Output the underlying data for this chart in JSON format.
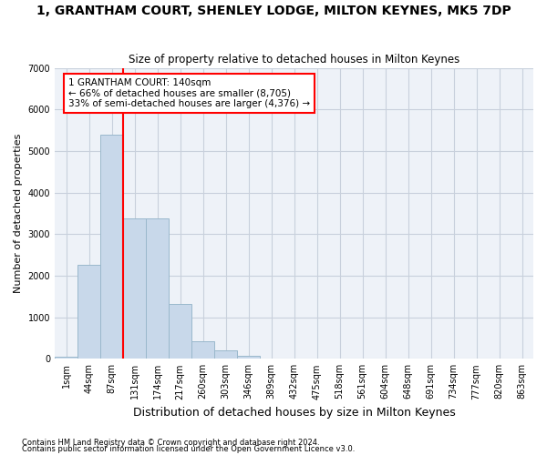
{
  "title": "1, GRANTHAM COURT, SHENLEY LODGE, MILTON KEYNES, MK5 7DP",
  "subtitle": "Size of property relative to detached houses in Milton Keynes",
  "xlabel": "Distribution of detached houses by size in Milton Keynes",
  "ylabel": "Number of detached properties",
  "bar_color": "#c8d8ea",
  "bar_edge_color": "#9ab8cc",
  "grid_color": "#c8d0dc",
  "background_color": "#eef2f8",
  "bin_labels": [
    "1sqm",
    "44sqm",
    "87sqm",
    "131sqm",
    "174sqm",
    "217sqm",
    "260sqm",
    "303sqm",
    "346sqm",
    "389sqm",
    "432sqm",
    "475sqm",
    "518sqm",
    "561sqm",
    "604sqm",
    "648sqm",
    "691sqm",
    "734sqm",
    "777sqm",
    "820sqm",
    "863sqm"
  ],
  "bar_values": [
    50,
    2270,
    5400,
    3380,
    3380,
    1320,
    430,
    200,
    80,
    0,
    0,
    0,
    0,
    0,
    0,
    0,
    0,
    0,
    0,
    0,
    0
  ],
  "ylim": [
    0,
    7000
  ],
  "yticks": [
    0,
    1000,
    2000,
    3000,
    4000,
    5000,
    6000,
    7000
  ],
  "red_line_bin_index": 3,
  "annotation_line1": "1 GRANTHAM COURT: 140sqm",
  "annotation_line2": "← 66% of detached houses are smaller (8,705)",
  "annotation_line3": "33% of semi-detached houses are larger (4,376) →",
  "footnote1": "Contains HM Land Registry data © Crown copyright and database right 2024.",
  "footnote2": "Contains public sector information licensed under the Open Government Licence v3.0."
}
